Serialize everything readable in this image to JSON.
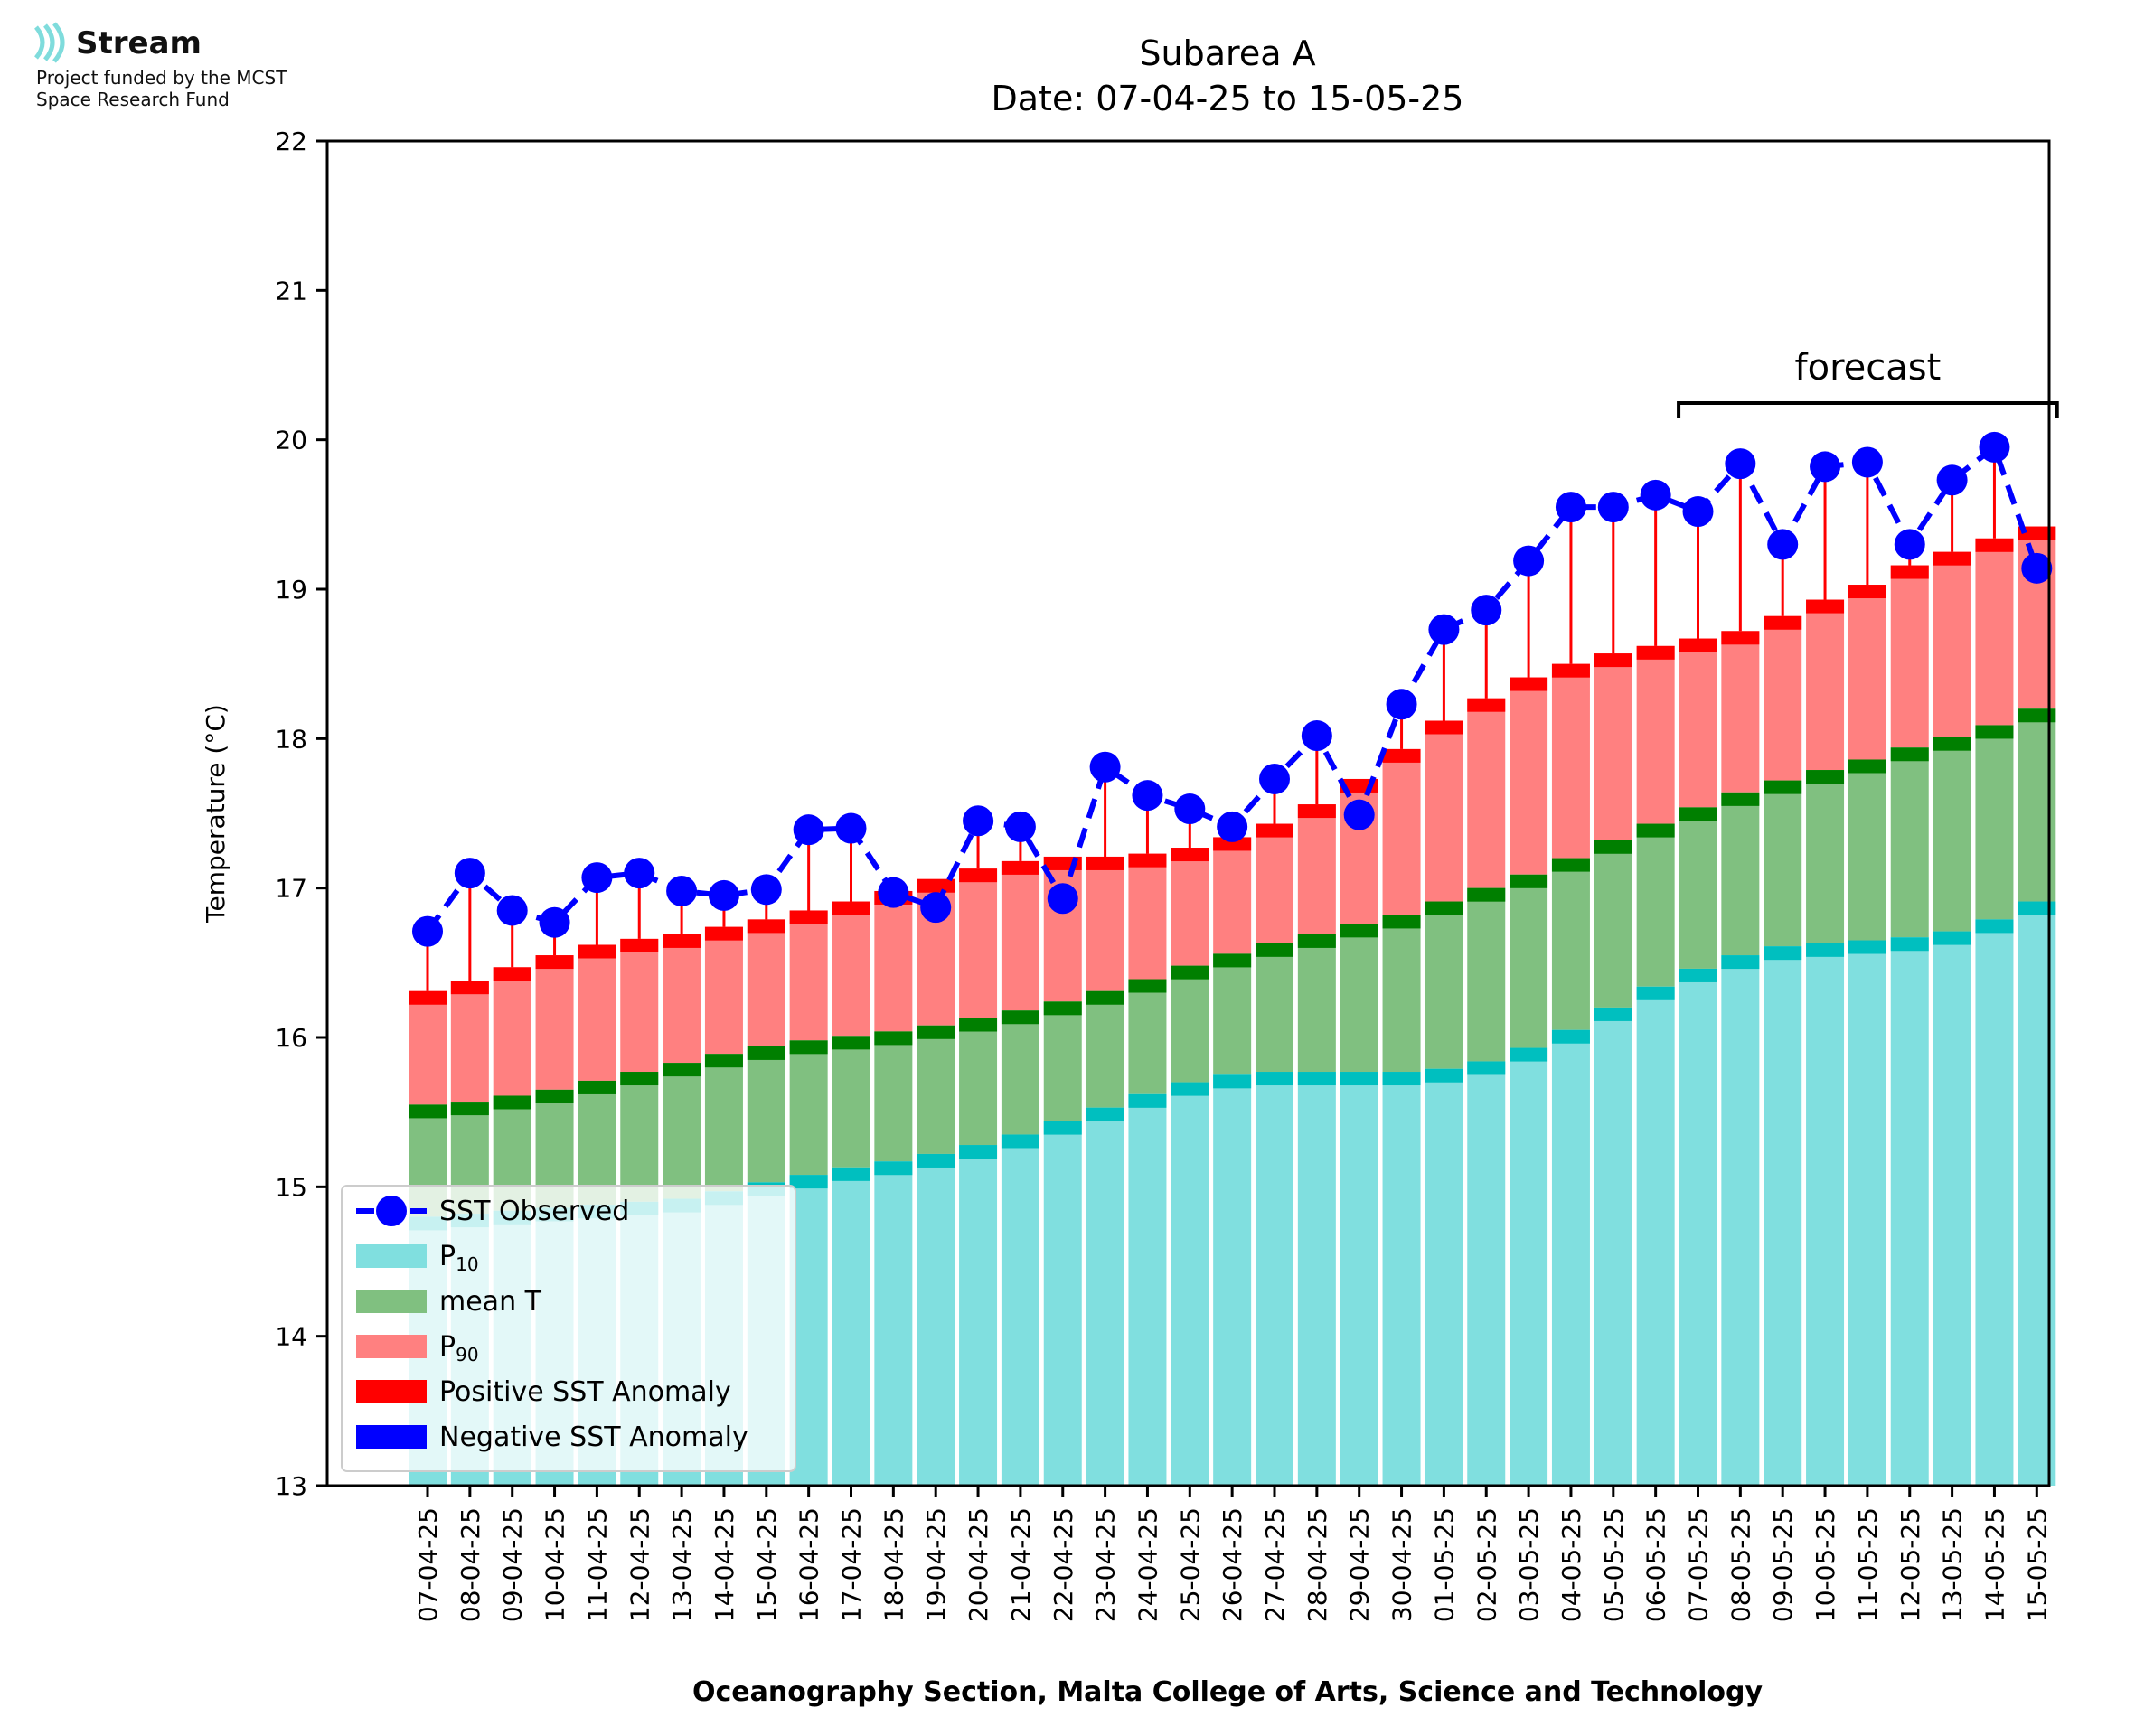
{
  "logo": {
    "name": "Stream",
    "line1": "Project funded by the MCST",
    "line2": "Space Research Fund",
    "color": "#7fdcdc"
  },
  "chart_data": {
    "type": "bar",
    "title": "Subarea A",
    "subtitle": "Date: 07-04-25 to 15-05-25",
    "ylabel": "Temperature (°C)",
    "xlabel": "Oceanography Section, Malta College of Arts, Science and Technology",
    "ylim": [
      13,
      22
    ],
    "yticks": [
      "13",
      "14",
      "15",
      "16",
      "17",
      "18",
      "19",
      "20",
      "21",
      "22"
    ],
    "forecast_label": "forecast",
    "forecast_range": [
      "07-05-25",
      "15-05-25"
    ],
    "categories": [
      "07-04-25",
      "08-04-25",
      "09-04-25",
      "10-04-25",
      "11-04-25",
      "12-04-25",
      "13-04-25",
      "14-04-25",
      "15-04-25",
      "16-04-25",
      "17-04-25",
      "18-04-25",
      "19-04-25",
      "20-04-25",
      "21-04-25",
      "22-04-25",
      "23-04-25",
      "24-04-25",
      "25-04-25",
      "26-04-25",
      "27-04-25",
      "28-04-25",
      "29-04-25",
      "30-04-25",
      "01-05-25",
      "02-05-25",
      "03-05-25",
      "04-05-25",
      "05-05-25",
      "06-05-25",
      "07-05-25",
      "08-05-25",
      "09-05-25",
      "10-05-25",
      "11-05-25",
      "12-05-25",
      "13-05-25",
      "14-05-25",
      "15-05-25"
    ],
    "series": [
      {
        "name": "P10",
        "color": "#80dfdf",
        "values": [
          14.8,
          14.82,
          14.84,
          14.86,
          14.88,
          14.9,
          14.92,
          14.97,
          15.03,
          15.08,
          15.13,
          15.17,
          15.22,
          15.28,
          15.35,
          15.44,
          15.53,
          15.62,
          15.7,
          15.75,
          15.77,
          15.77,
          15.77,
          15.77,
          15.79,
          15.84,
          15.93,
          16.05,
          16.2,
          16.34,
          16.46,
          16.55,
          16.61,
          16.63,
          16.65,
          16.67,
          16.71,
          16.79,
          16.91
        ]
      },
      {
        "name": "mean T",
        "color": "#80c080",
        "values": [
          15.55,
          15.57,
          15.61,
          15.65,
          15.71,
          15.77,
          15.83,
          15.89,
          15.94,
          15.98,
          16.01,
          16.04,
          16.08,
          16.13,
          16.18,
          16.24,
          16.31,
          16.39,
          16.48,
          16.56,
          16.63,
          16.69,
          16.76,
          16.82,
          16.91,
          17.0,
          17.09,
          17.2,
          17.32,
          17.43,
          17.54,
          17.64,
          17.72,
          17.79,
          17.86,
          17.94,
          18.01,
          18.09,
          18.2
        ]
      },
      {
        "name": "P90",
        "color": "#ff8080",
        "values": [
          16.31,
          16.38,
          16.47,
          16.55,
          16.62,
          16.66,
          16.69,
          16.74,
          16.79,
          16.85,
          16.91,
          16.98,
          17.06,
          17.13,
          17.18,
          17.21,
          17.21,
          17.23,
          17.27,
          17.34,
          17.43,
          17.56,
          17.73,
          17.93,
          18.12,
          18.27,
          18.41,
          18.5,
          18.57,
          18.62,
          18.67,
          18.72,
          18.82,
          18.93,
          19.03,
          19.16,
          19.25,
          19.34,
          19.42
        ]
      },
      {
        "name": "SST Observed",
        "color": "#0000ff",
        "values": [
          16.71,
          17.1,
          16.85,
          16.77,
          17.07,
          17.1,
          16.98,
          16.95,
          16.99,
          17.39,
          17.4,
          16.97,
          16.87,
          17.45,
          17.41,
          16.93,
          17.81,
          17.62,
          17.53,
          17.41,
          17.73,
          18.02,
          17.49,
          18.23,
          18.73,
          18.86,
          19.19,
          19.55,
          19.55,
          19.63,
          19.52,
          19.84,
          19.3,
          19.82,
          19.85,
          19.3,
          19.73,
          19.95,
          19.14
        ]
      }
    ],
    "legend": {
      "placement": "lower-left",
      "entries": [
        {
          "label": "SST Observed",
          "kind": "line"
        },
        {
          "label": "P",
          "sub": "10",
          "kind": "patch",
          "color": "#80dfdf"
        },
        {
          "label": "mean T",
          "kind": "patch",
          "color": "#80c080"
        },
        {
          "label": "P",
          "sub": "90",
          "kind": "patch",
          "color": "#ff8080"
        },
        {
          "label": "Positive SST Anomaly",
          "kind": "patch",
          "color": "#ff0000"
        },
        {
          "label": "Negative SST Anomaly",
          "kind": "patch",
          "color": "#0000ff"
        }
      ]
    },
    "marker_colors": {
      "p10": "#00bfbf",
      "mean": "#007f00",
      "p90": "#ff0000",
      "anomaly_pos": "#ff0000",
      "anomaly_neg": "#0000ff"
    }
  }
}
